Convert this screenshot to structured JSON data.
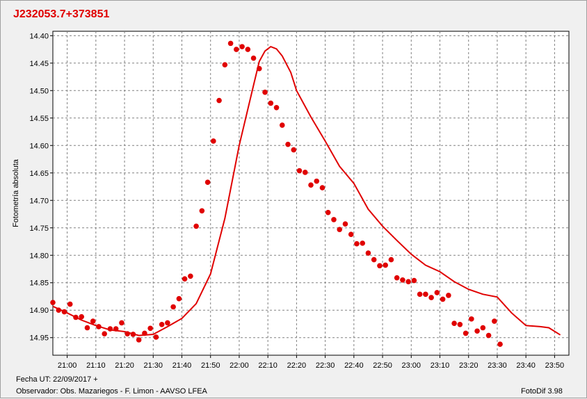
{
  "chart_data": {
    "type": "scatter",
    "title": "J232053.7+373851",
    "ylabel": "Fotometría absoluta",
    "xlabel": "",
    "y_axis_inverted": true,
    "ylim": [
      14.392,
      14.982
    ],
    "xlim": [
      "20:55",
      "23:55"
    ],
    "grid": true,
    "grid_style": "dashed",
    "color": "#e00000",
    "x_ticks": [
      "21:00",
      "21:10",
      "21:20",
      "21:30",
      "21:40",
      "21:50",
      "22:00",
      "22:10",
      "22:20",
      "22:30",
      "22:40",
      "22:50",
      "23:00",
      "23:10",
      "23:20",
      "23:30",
      "23:40",
      "23:50"
    ],
    "y_ticks": [
      "14.40",
      "14.45",
      "14.50",
      "14.55",
      "14.60",
      "14.65",
      "14.70",
      "14.75",
      "14.80",
      "14.85",
      "14.90",
      "14.95"
    ],
    "points": [
      [
        "20:55",
        14.886
      ],
      [
        "20:57",
        14.9
      ],
      [
        "20:59",
        14.903
      ],
      [
        "21:01",
        14.889
      ],
      [
        "21:03",
        14.913
      ],
      [
        "21:05",
        14.912
      ],
      [
        "21:07",
        14.932
      ],
      [
        "21:09",
        14.92
      ],
      [
        "21:11",
        14.93
      ],
      [
        "21:13",
        14.943
      ],
      [
        "21:15",
        14.934
      ],
      [
        "21:17",
        14.934
      ],
      [
        "21:19",
        14.923
      ],
      [
        "21:21",
        14.943
      ],
      [
        "21:23",
        14.944
      ],
      [
        "21:25",
        14.954
      ],
      [
        "21:27",
        14.942
      ],
      [
        "21:29",
        14.933
      ],
      [
        "21:31",
        14.949
      ],
      [
        "21:33",
        14.926
      ],
      [
        "21:35",
        14.923
      ],
      [
        "21:37",
        14.894
      ],
      [
        "21:39",
        14.879
      ],
      [
        "21:41",
        14.843
      ],
      [
        "21:43",
        14.838
      ],
      [
        "21:45",
        14.747
      ],
      [
        "21:47",
        14.719
      ],
      [
        "21:49",
        14.667
      ],
      [
        "21:51",
        14.592
      ],
      [
        "21:53",
        14.518
      ],
      [
        "21:55",
        14.453
      ],
      [
        "21:57",
        14.414
      ],
      [
        "21:59",
        14.425
      ],
      [
        "22:01",
        14.42
      ],
      [
        "22:03",
        14.425
      ],
      [
        "22:05",
        14.441
      ],
      [
        "22:07",
        14.46
      ],
      [
        "22:09",
        14.503
      ],
      [
        "22:11",
        14.523
      ],
      [
        "22:13",
        14.531
      ],
      [
        "22:15",
        14.563
      ],
      [
        "22:17",
        14.598
      ],
      [
        "22:19",
        14.608
      ],
      [
        "22:21",
        14.646
      ],
      [
        "22:23",
        14.649
      ],
      [
        "22:25",
        14.672
      ],
      [
        "22:27",
        14.665
      ],
      [
        "22:29",
        14.677
      ],
      [
        "22:31",
        14.722
      ],
      [
        "22:33",
        14.735
      ],
      [
        "22:35",
        14.753
      ],
      [
        "22:37",
        14.743
      ],
      [
        "22:39",
        14.762
      ],
      [
        "22:41",
        14.779
      ],
      [
        "22:43",
        14.778
      ],
      [
        "22:45",
        14.796
      ],
      [
        "22:47",
        14.808
      ],
      [
        "22:49",
        14.819
      ],
      [
        "22:51",
        14.818
      ],
      [
        "22:53",
        14.808
      ],
      [
        "22:55",
        14.841
      ],
      [
        "22:57",
        14.845
      ],
      [
        "22:59",
        14.848
      ],
      [
        "23:01",
        14.846
      ],
      [
        "23:03",
        14.871
      ],
      [
        "23:05",
        14.871
      ],
      [
        "23:07",
        14.877
      ],
      [
        "23:09",
        14.868
      ],
      [
        "23:11",
        14.88
      ],
      [
        "23:13",
        14.873
      ],
      [
        "23:15",
        14.924
      ],
      [
        "23:17",
        14.926
      ],
      [
        "23:19",
        14.942
      ],
      [
        "23:21",
        14.916
      ],
      [
        "23:23",
        14.938
      ],
      [
        "23:25",
        14.932
      ],
      [
        "23:27",
        14.946
      ],
      [
        "23:29",
        14.92
      ],
      [
        "23:31",
        14.962
      ]
    ],
    "curve": [
      [
        "20:55",
        14.893
      ],
      [
        "21:00",
        14.905
      ],
      [
        "21:05",
        14.918
      ],
      [
        "21:10",
        14.928
      ],
      [
        "21:15",
        14.936
      ],
      [
        "21:20",
        14.939
      ],
      [
        "21:25",
        14.946
      ],
      [
        "21:30",
        14.944
      ],
      [
        "21:35",
        14.93
      ],
      [
        "21:40",
        14.915
      ],
      [
        "21:45",
        14.888
      ],
      [
        "21:50",
        14.834
      ],
      [
        "21:55",
        14.733
      ],
      [
        "22:00",
        14.6
      ],
      [
        "22:05",
        14.49
      ],
      [
        "22:07",
        14.447
      ],
      [
        "22:09",
        14.428
      ],
      [
        "22:11",
        14.42
      ],
      [
        "22:13",
        14.424
      ],
      [
        "22:15",
        14.437
      ],
      [
        "22:18",
        14.467
      ],
      [
        "22:20",
        14.5
      ],
      [
        "22:25",
        14.548
      ],
      [
        "22:30",
        14.592
      ],
      [
        "22:35",
        14.638
      ],
      [
        "22:40",
        14.669
      ],
      [
        "22:45",
        14.716
      ],
      [
        "22:50",
        14.747
      ],
      [
        "22:55",
        14.773
      ],
      [
        "23:00",
        14.798
      ],
      [
        "23:05",
        14.818
      ],
      [
        "23:10",
        14.83
      ],
      [
        "23:15",
        14.848
      ],
      [
        "23:20",
        14.862
      ],
      [
        "23:25",
        14.871
      ],
      [
        "23:30",
        14.876
      ],
      [
        "23:35",
        14.905
      ],
      [
        "23:40",
        14.928
      ],
      [
        "23:45",
        14.93
      ],
      [
        "23:48",
        14.932
      ],
      [
        "23:52",
        14.945
      ]
    ]
  },
  "footer": {
    "date": "Fecha UT: 22/09/2017 +",
    "observer": "Observador: Obs. Mazariegos - F. Limon - AAVSO LFEA",
    "software": "FotoDif 3.98"
  }
}
